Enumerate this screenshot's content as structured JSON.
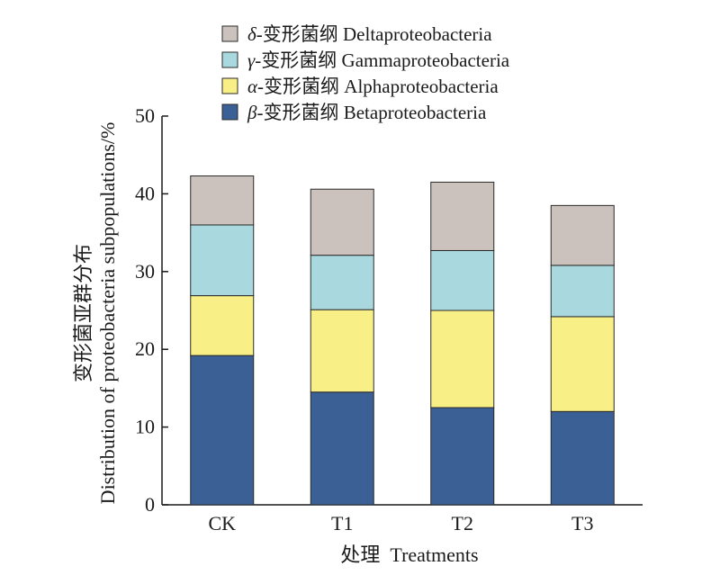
{
  "chart_data": {
    "type": "bar",
    "stacked": true,
    "xlabel": "处理  Treatments",
    "ylabel_cn": "变形菌亚群分布",
    "ylabel_en": "Distribution of proteobacteria subpopulations/%",
    "categories": [
      "CK",
      "T1",
      "T2",
      "T3"
    ],
    "ylim": [
      0,
      50
    ],
    "yticks": [
      "0",
      "10",
      "20",
      "30",
      "40",
      "50"
    ],
    "grid": false,
    "legend_position": "top",
    "series": [
      {
        "name": "β-变形菌纲 Betaproteobacteria",
        "greek": "β",
        "cn": "-变形菌纲",
        "en": "Betaproteobacteria",
        "color": "#3b6096",
        "values": [
          19.2,
          14.5,
          12.5,
          12.0
        ]
      },
      {
        "name": "α-变形菌纲 Alphaproteobacteria",
        "greek": "α",
        "cn": "-变形菌纲",
        "en": "Alphaproteobacteria",
        "color": "#f8ef86",
        "values": [
          7.7,
          10.6,
          12.5,
          12.2
        ]
      },
      {
        "name": "γ-变形菌纲 Gammaproteobacteria",
        "greek": "γ",
        "cn": "-变形菌纲",
        "en": "Gammaproteobacteria",
        "color": "#a9d9df",
        "values": [
          9.1,
          7.0,
          7.7,
          6.6
        ]
      },
      {
        "name": "δ-变形菌纲 Deltaproteobacteria",
        "greek": "δ",
        "cn": "-变形菌纲",
        "en": "Deltaproteobacteria",
        "color": "#cbc2bd",
        "values": [
          6.3,
          8.5,
          8.8,
          7.7
        ]
      }
    ]
  }
}
